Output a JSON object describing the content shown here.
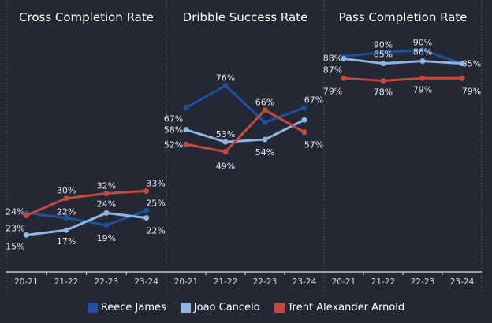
{
  "chart_data": [
    {
      "type": "line",
      "title": "Cross Completion Rate",
      "categories": [
        "20-21",
        "21-22",
        "22-23",
        "23-24"
      ],
      "xlabel": "",
      "ylabel": "",
      "grid": false,
      "series": [
        {
          "name": "Reece James",
          "values": [
            24,
            22,
            19,
            25
          ],
          "labels": [
            "24%",
            "22%",
            "19%",
            "25%"
          ]
        },
        {
          "name": "Joao Cancelo",
          "values": [
            15,
            17,
            24,
            22
          ],
          "labels": [
            "15%",
            "17%",
            "24%",
            "22%"
          ]
        },
        {
          "name": "Trent Alexander Arnold",
          "values": [
            23,
            30,
            32,
            33
          ],
          "labels": [
            "23%",
            "30%",
            "32%",
            "33%"
          ]
        }
      ]
    },
    {
      "type": "line",
      "title": "Dribble Success Rate",
      "categories": [
        "20-21",
        "21-22",
        "22-23",
        "23-24"
      ],
      "xlabel": "",
      "ylabel": "",
      "grid": false,
      "series": [
        {
          "name": "Reece James",
          "values": [
            67,
            76,
            61,
            67
          ],
          "labels": [
            "67%",
            "76%",
            "",
            "67%"
          ]
        },
        {
          "name": "Joao Cancelo",
          "values": [
            58,
            53,
            54,
            62
          ],
          "labels": [
            "58%",
            "53%",
            "54%",
            ""
          ]
        },
        {
          "name": "Trent Alexander Arnold",
          "values": [
            52,
            49,
            66,
            57
          ],
          "labels": [
            "52%",
            "49%",
            "66%",
            "57%"
          ]
        }
      ]
    },
    {
      "type": "line",
      "title": "Pass Completion Rate",
      "categories": [
        "20-21",
        "21-22",
        "22-23",
        "23-24"
      ],
      "xlabel": "",
      "ylabel": "",
      "grid": false,
      "series": [
        {
          "name": "Reece James",
          "values": [
            88,
            89.5,
            90.5,
            85
          ],
          "labels": [
            "88%",
            "90%",
            "90%",
            "85%"
          ]
        },
        {
          "name": "Joao Cancelo",
          "values": [
            87,
            85,
            86,
            85
          ],
          "labels": [
            "87%",
            "85%",
            "86%",
            ""
          ]
        },
        {
          "name": "Trent Alexander Arnold",
          "values": [
            79,
            78,
            79,
            79
          ],
          "labels": [
            "79%",
            "78%",
            "79%",
            "79%"
          ]
        }
      ]
    }
  ],
  "legend": {
    "placement": "bottom",
    "items": [
      {
        "name": "Reece James",
        "color": "#1f4f9e"
      },
      {
        "name": "Joao Cancelo",
        "color": "#8fb6e3"
      },
      {
        "name": "Trent Alexander Arnold",
        "color": "#c24a3c"
      }
    ]
  },
  "y_range": [
    0,
    110
  ]
}
